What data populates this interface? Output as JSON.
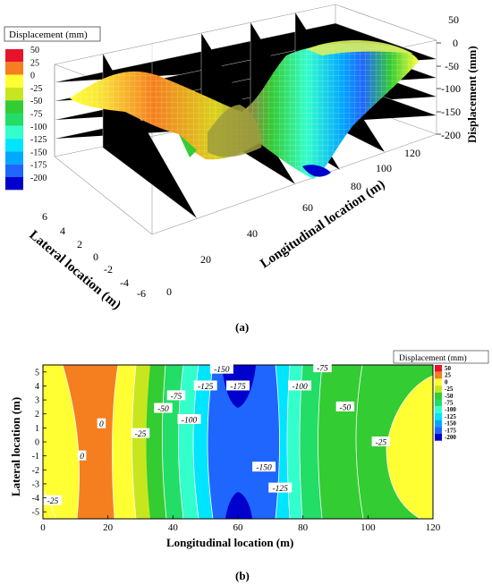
{
  "chart_data": [
    {
      "type": "surface",
      "panel_label": "(a)",
      "legend_title": "Displacement (mm)",
      "zlabel": "Displacement (mm)",
      "xlabel": "Longitudinal location (m)",
      "ylabel": "Lateral location (m)",
      "x_ticks": [
        0,
        20,
        40,
        60,
        80,
        100,
        120
      ],
      "y_ticks": [
        6,
        4,
        2,
        0,
        -2,
        -4,
        -6
      ],
      "z_ticks": [
        50,
        0,
        -50,
        -100,
        -150,
        -200
      ],
      "zlim": [
        -200,
        50
      ],
      "levels": [
        "50",
        "25",
        "0",
        "-25",
        "-50",
        "-75",
        "-100",
        "-125",
        "-150",
        "-175",
        "-200"
      ],
      "level_colors": [
        "#e8122b",
        "#f57f1e",
        "#ffff33",
        "#c8e61e",
        "#33cc33",
        "#22dd66",
        "#33ffcc",
        "#00e5ff",
        "#00a8ff",
        "#1f66ff",
        "#0000cc"
      ]
    },
    {
      "type": "contour",
      "panel_label": "(b)",
      "legend_title": "Displacement (mm)",
      "xlabel": "Longitudinal location (m)",
      "ylabel": "Lateral location (m)",
      "x_ticks": [
        0,
        20,
        40,
        60,
        80,
        100,
        120
      ],
      "y_ticks": [
        5,
        4,
        3,
        2,
        1,
        0,
        -1,
        -2,
        -3,
        -4,
        -5
      ],
      "xlim": [
        0,
        120
      ],
      "ylim": [
        -5.5,
        5.5
      ],
      "levels": [
        "50",
        "25",
        "0",
        "-25",
        "-50",
        "-75",
        "-100",
        "-125",
        "-150",
        "-175",
        "-200"
      ],
      "level_colors": [
        "#e8122b",
        "#f57f1e",
        "#ffff33",
        "#c8e61e",
        "#33cc33",
        "#22dd66",
        "#33ffcc",
        "#00e5ff",
        "#00a8ff",
        "#1f66ff",
        "#0000cc"
      ],
      "contour_labels": [
        {
          "text": "-25",
          "x": 3,
          "y": -4.2
        },
        {
          "text": "0",
          "x": 12,
          "y": -1
        },
        {
          "text": "0",
          "x": 18,
          "y": 1.3
        },
        {
          "text": "-25",
          "x": 30,
          "y": 0.6
        },
        {
          "text": "-50",
          "x": 37,
          "y": 2.4
        },
        {
          "text": "-75",
          "x": 41,
          "y": 3.3
        },
        {
          "text": "-100",
          "x": 45,
          "y": 1.6
        },
        {
          "text": "-125",
          "x": 50,
          "y": 4.0
        },
        {
          "text": "-150",
          "x": 55,
          "y": 5.2
        },
        {
          "text": "-175",
          "x": 60,
          "y": 4.0
        },
        {
          "text": "-150",
          "x": 68,
          "y": -1.8
        },
        {
          "text": "-125",
          "x": 73,
          "y": -3.3
        },
        {
          "text": "-100",
          "x": 79,
          "y": 4.0
        },
        {
          "text": "-75",
          "x": 86,
          "y": 5.3
        },
        {
          "text": "-50",
          "x": 93,
          "y": 2.5
        },
        {
          "text": "-25",
          "x": 104,
          "y": 0
        }
      ]
    }
  ]
}
